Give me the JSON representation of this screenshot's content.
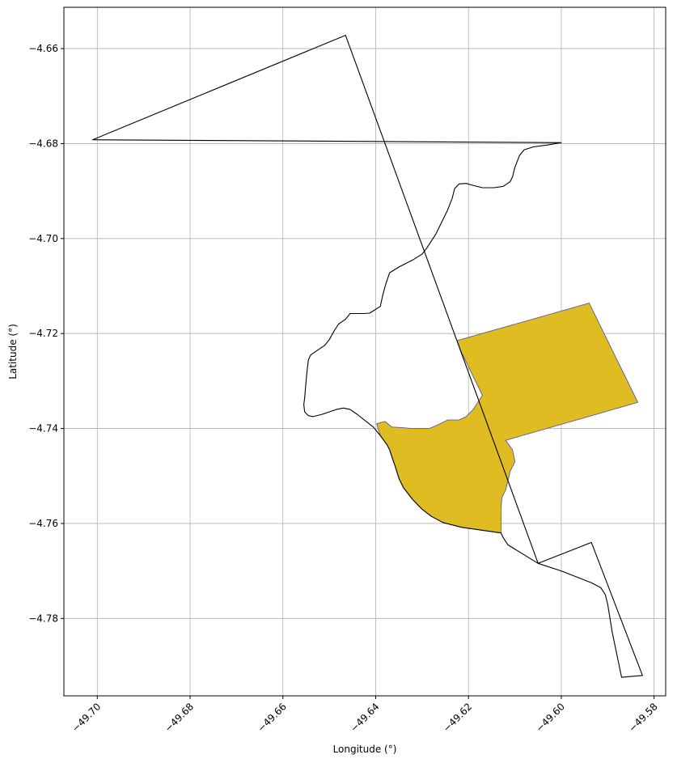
{
  "chart_data": {
    "type": "map",
    "xlabel": "Longitude (°)",
    "ylabel": "Latitude (°)",
    "xlim": [
      -49.7072,
      -49.5775
    ],
    "ylim": [
      -4.7963,
      -4.6513
    ],
    "xticks": [
      -49.7,
      -49.68,
      -49.66,
      -49.64,
      -49.62,
      -49.6,
      -49.58
    ],
    "xtick_labels": [
      "−49.70",
      "−49.68",
      "−49.66",
      "−49.64",
      "−49.62",
      "−49.60",
      "−49.58"
    ],
    "yticks": [
      -4.66,
      -4.68,
      -4.7,
      -4.72,
      -4.74,
      -4.76,
      -4.78
    ],
    "ytick_labels": [
      "−4.66",
      "−4.68",
      "−4.70",
      "−4.72",
      "−4.74",
      "−4.76",
      "−4.78"
    ],
    "grid": true,
    "colors": {
      "outline": "#000000",
      "fill": "#dfbc21",
      "fill_edge": "#4b4b9a",
      "grid": "#b0b0b0"
    },
    "boundary_polygon": [
      [
        -49.701,
        -4.6792
      ],
      [
        -49.6465,
        -4.6572
      ],
      [
        -49.605,
        -4.7684
      ],
      [
        -49.5935,
        -4.764
      ],
      [
        -49.5825,
        -4.792
      ],
      [
        -49.587,
        -4.7924
      ],
      [
        -49.5875,
        -4.79
      ],
      [
        -49.589,
        -4.783
      ],
      [
        -49.59,
        -4.777
      ],
      [
        -49.5905,
        -4.775
      ],
      [
        -49.5915,
        -4.7735
      ],
      [
        -49.5935,
        -4.7725
      ],
      [
        -49.6,
        -4.77
      ],
      [
        -49.605,
        -4.7684
      ],
      [
        -49.609,
        -4.766
      ],
      [
        -49.6115,
        -4.7645
      ],
      [
        -49.6125,
        -4.763
      ],
      [
        -49.613,
        -4.762
      ],
      [
        -49.618,
        -4.7613
      ],
      [
        -49.6215,
        -4.7608
      ],
      [
        -49.6255,
        -4.7598
      ],
      [
        -49.628,
        -4.7585
      ],
      [
        -49.63,
        -4.757
      ],
      [
        -49.632,
        -4.755
      ],
      [
        -49.634,
        -4.7525
      ],
      [
        -49.635,
        -4.7505
      ],
      [
        -49.6358,
        -4.748
      ],
      [
        -49.6365,
        -4.746
      ],
      [
        -49.637,
        -4.7445
      ],
      [
        -49.6375,
        -4.7435
      ],
      [
        -49.639,
        -4.7415
      ],
      [
        -49.6405,
        -4.7397
      ],
      [
        -49.644,
        -4.737
      ],
      [
        -49.6455,
        -4.736
      ],
      [
        -49.647,
        -4.7357
      ],
      [
        -49.6485,
        -4.736
      ],
      [
        -49.6515,
        -4.737
      ],
      [
        -49.6535,
        -4.7375
      ],
      [
        -49.6545,
        -4.7373
      ],
      [
        -49.6553,
        -4.7365
      ],
      [
        -49.6555,
        -4.735
      ],
      [
        -49.6553,
        -4.7335
      ],
      [
        -49.655,
        -4.73
      ],
      [
        -49.6547,
        -4.727
      ],
      [
        -49.6545,
        -4.7255
      ],
      [
        -49.654,
        -4.7245
      ],
      [
        -49.6525,
        -4.7235
      ],
      [
        -49.651,
        -4.7225
      ],
      [
        -49.65,
        -4.7213
      ],
      [
        -49.649,
        -4.7195
      ],
      [
        -49.648,
        -4.718
      ],
      [
        -49.6465,
        -4.717
      ],
      [
        -49.6457,
        -4.716
      ],
      [
        -49.6455,
        -4.7158
      ],
      [
        -49.6425,
        -4.7158
      ],
      [
        -49.6413,
        -4.7157
      ],
      [
        -49.639,
        -4.7143
      ],
      [
        -49.6385,
        -4.712
      ],
      [
        -49.6378,
        -4.7095
      ],
      [
        -49.637,
        -4.7072
      ],
      [
        -49.635,
        -4.706
      ],
      [
        -49.632,
        -4.7045
      ],
      [
        -49.63,
        -4.7033
      ],
      [
        -49.629,
        -4.702
      ],
      [
        -49.627,
        -4.699
      ],
      [
        -49.6255,
        -4.696
      ],
      [
        -49.6245,
        -4.694
      ],
      [
        -49.6235,
        -4.6915
      ],
      [
        -49.623,
        -4.6895
      ],
      [
        -49.622,
        -4.6885
      ],
      [
        -49.6205,
        -4.6884
      ],
      [
        -49.619,
        -4.6888
      ],
      [
        -49.617,
        -4.6893
      ],
      [
        -49.6145,
        -4.6893
      ],
      [
        -49.6125,
        -4.689
      ],
      [
        -49.611,
        -4.688
      ],
      [
        -49.6105,
        -4.687
      ],
      [
        -49.61,
        -4.685
      ],
      [
        -49.609,
        -4.6825
      ],
      [
        -49.608,
        -4.6813
      ],
      [
        -49.606,
        -4.6807
      ],
      [
        -49.603,
        -4.6803
      ],
      [
        -49.6,
        -4.6798
      ],
      [
        -49.701,
        -4.6792
      ]
    ],
    "filled_region": [
      [
        -49.6225,
        -4.7215
      ],
      [
        -49.594,
        -4.7136
      ],
      [
        -49.5835,
        -4.7345
      ],
      [
        -49.612,
        -4.7425
      ],
      [
        -49.6105,
        -4.7445
      ],
      [
        -49.61,
        -4.747
      ],
      [
        -49.611,
        -4.749
      ],
      [
        -49.6115,
        -4.751
      ],
      [
        -49.612,
        -4.753
      ],
      [
        -49.6128,
        -4.7545
      ],
      [
        -49.613,
        -4.757
      ],
      [
        -49.613,
        -4.76
      ],
      [
        -49.613,
        -4.762
      ],
      [
        -49.618,
        -4.7613
      ],
      [
        -49.6215,
        -4.7608
      ],
      [
        -49.6255,
        -4.7598
      ],
      [
        -49.628,
        -4.7585
      ],
      [
        -49.63,
        -4.757
      ],
      [
        -49.632,
        -4.755
      ],
      [
        -49.634,
        -4.7525
      ],
      [
        -49.635,
        -4.7505
      ],
      [
        -49.6358,
        -4.748
      ],
      [
        -49.6365,
        -4.746
      ],
      [
        -49.637,
        -4.7445
      ],
      [
        -49.6375,
        -4.7435
      ],
      [
        -49.639,
        -4.7415
      ],
      [
        -49.6398,
        -4.739
      ],
      [
        -49.638,
        -4.7385
      ],
      [
        -49.6365,
        -4.7397
      ],
      [
        -49.6345,
        -4.7398
      ],
      [
        -49.632,
        -4.74
      ],
      [
        -49.6285,
        -4.74
      ],
      [
        -49.6265,
        -4.7392
      ],
      [
        -49.6245,
        -4.7382
      ],
      [
        -49.622,
        -4.7382
      ],
      [
        -49.6205,
        -4.7375
      ],
      [
        -49.619,
        -4.736
      ],
      [
        -49.618,
        -4.7345
      ],
      [
        -49.617,
        -4.733
      ],
      [
        -49.6185,
        -4.73
      ],
      [
        -49.62,
        -4.727
      ],
      [
        -49.6215,
        -4.724
      ],
      [
        -49.6225,
        -4.7215
      ]
    ]
  }
}
